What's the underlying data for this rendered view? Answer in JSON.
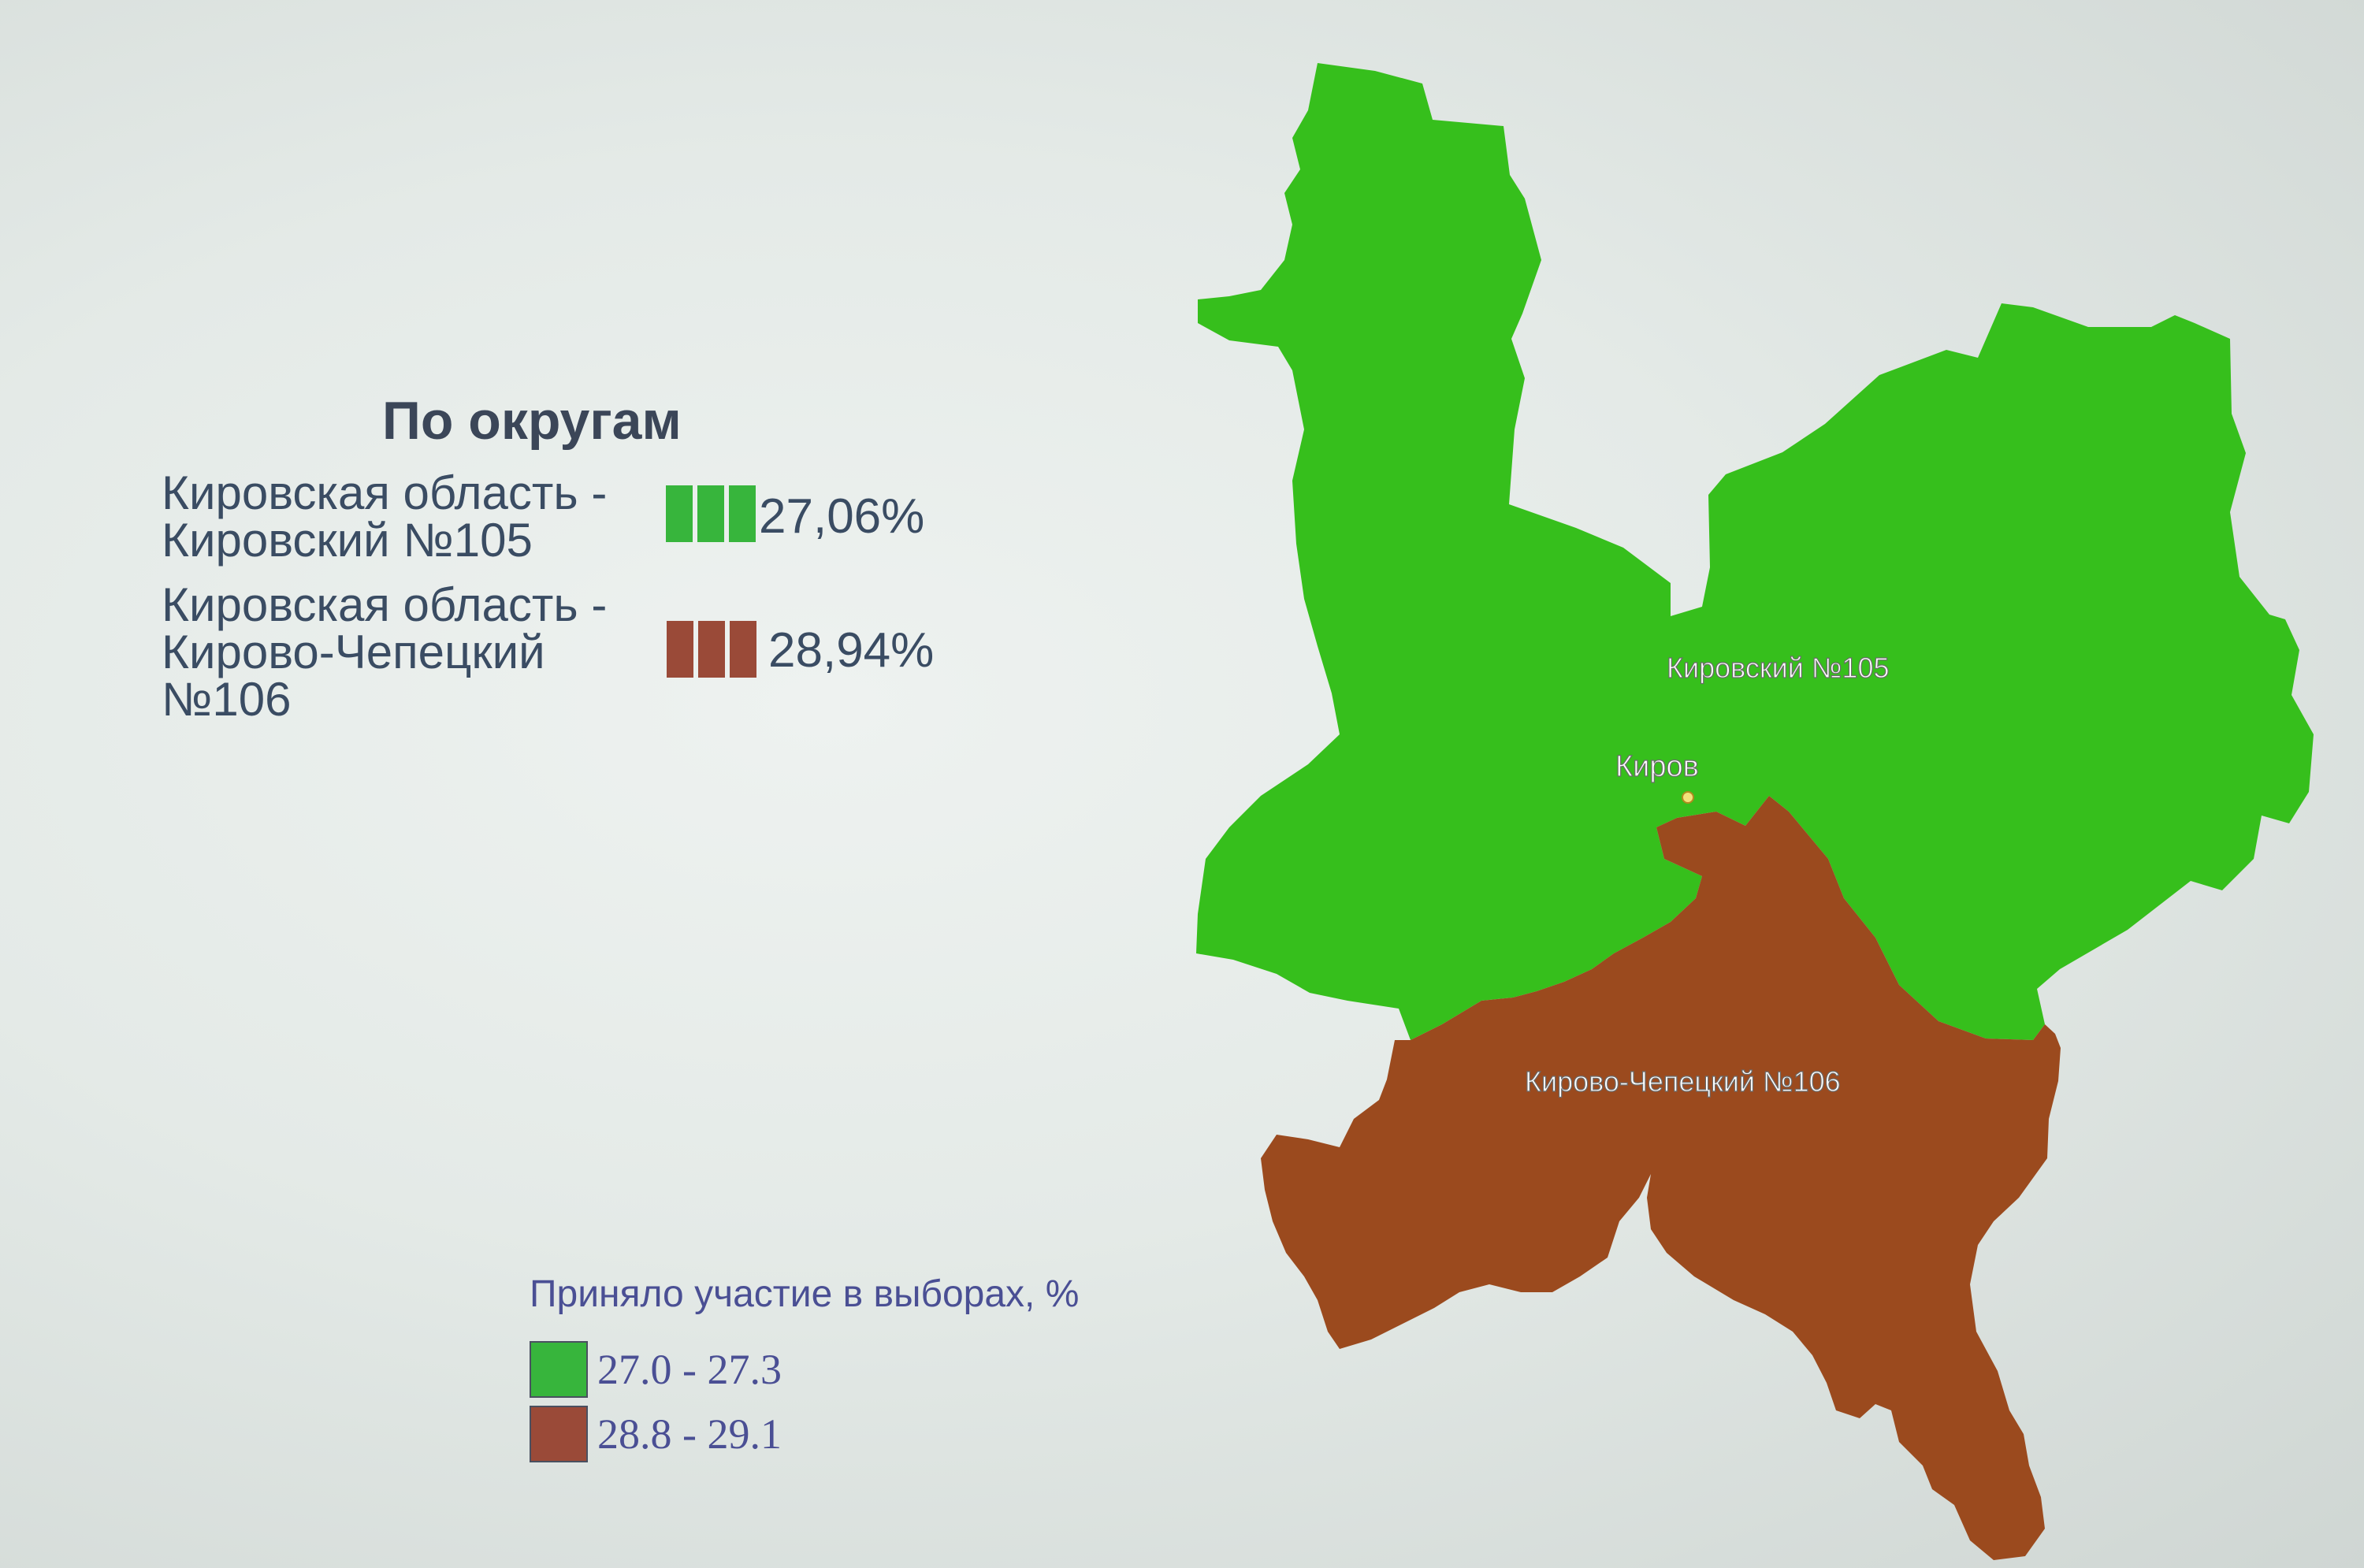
{
  "stats": {
    "title": "По округам",
    "districts": [
      {
        "name": "Кировская область - Кировский №105",
        "name_lines": [
          "Кировская область -",
          "Кировский №105"
        ],
        "percent": "27,06%",
        "color": "#37b53c"
      },
      {
        "name": "Кировская область - Кирово-Чепецкий №106",
        "name_lines": [
          "Кировская область -",
          "Кирово-Чепецкий",
          "№106"
        ],
        "percent": "28,94%",
        "color": "#9a4a38"
      }
    ]
  },
  "map": {
    "colors": {
      "district_105": "#36bf1c",
      "district_106": "#9b4a1e"
    },
    "labels": {
      "district_105": "Кировский №105",
      "district_106": "Кирово-Чепецкий №106",
      "city": "Киров"
    }
  },
  "legend": {
    "title": "Приняло участие в выборах, %",
    "items": [
      {
        "range": "27.0 - 27.3",
        "color": "#37b53c"
      },
      {
        "range": "28.8 - 29.1",
        "color": "#9a4a38"
      }
    ]
  }
}
